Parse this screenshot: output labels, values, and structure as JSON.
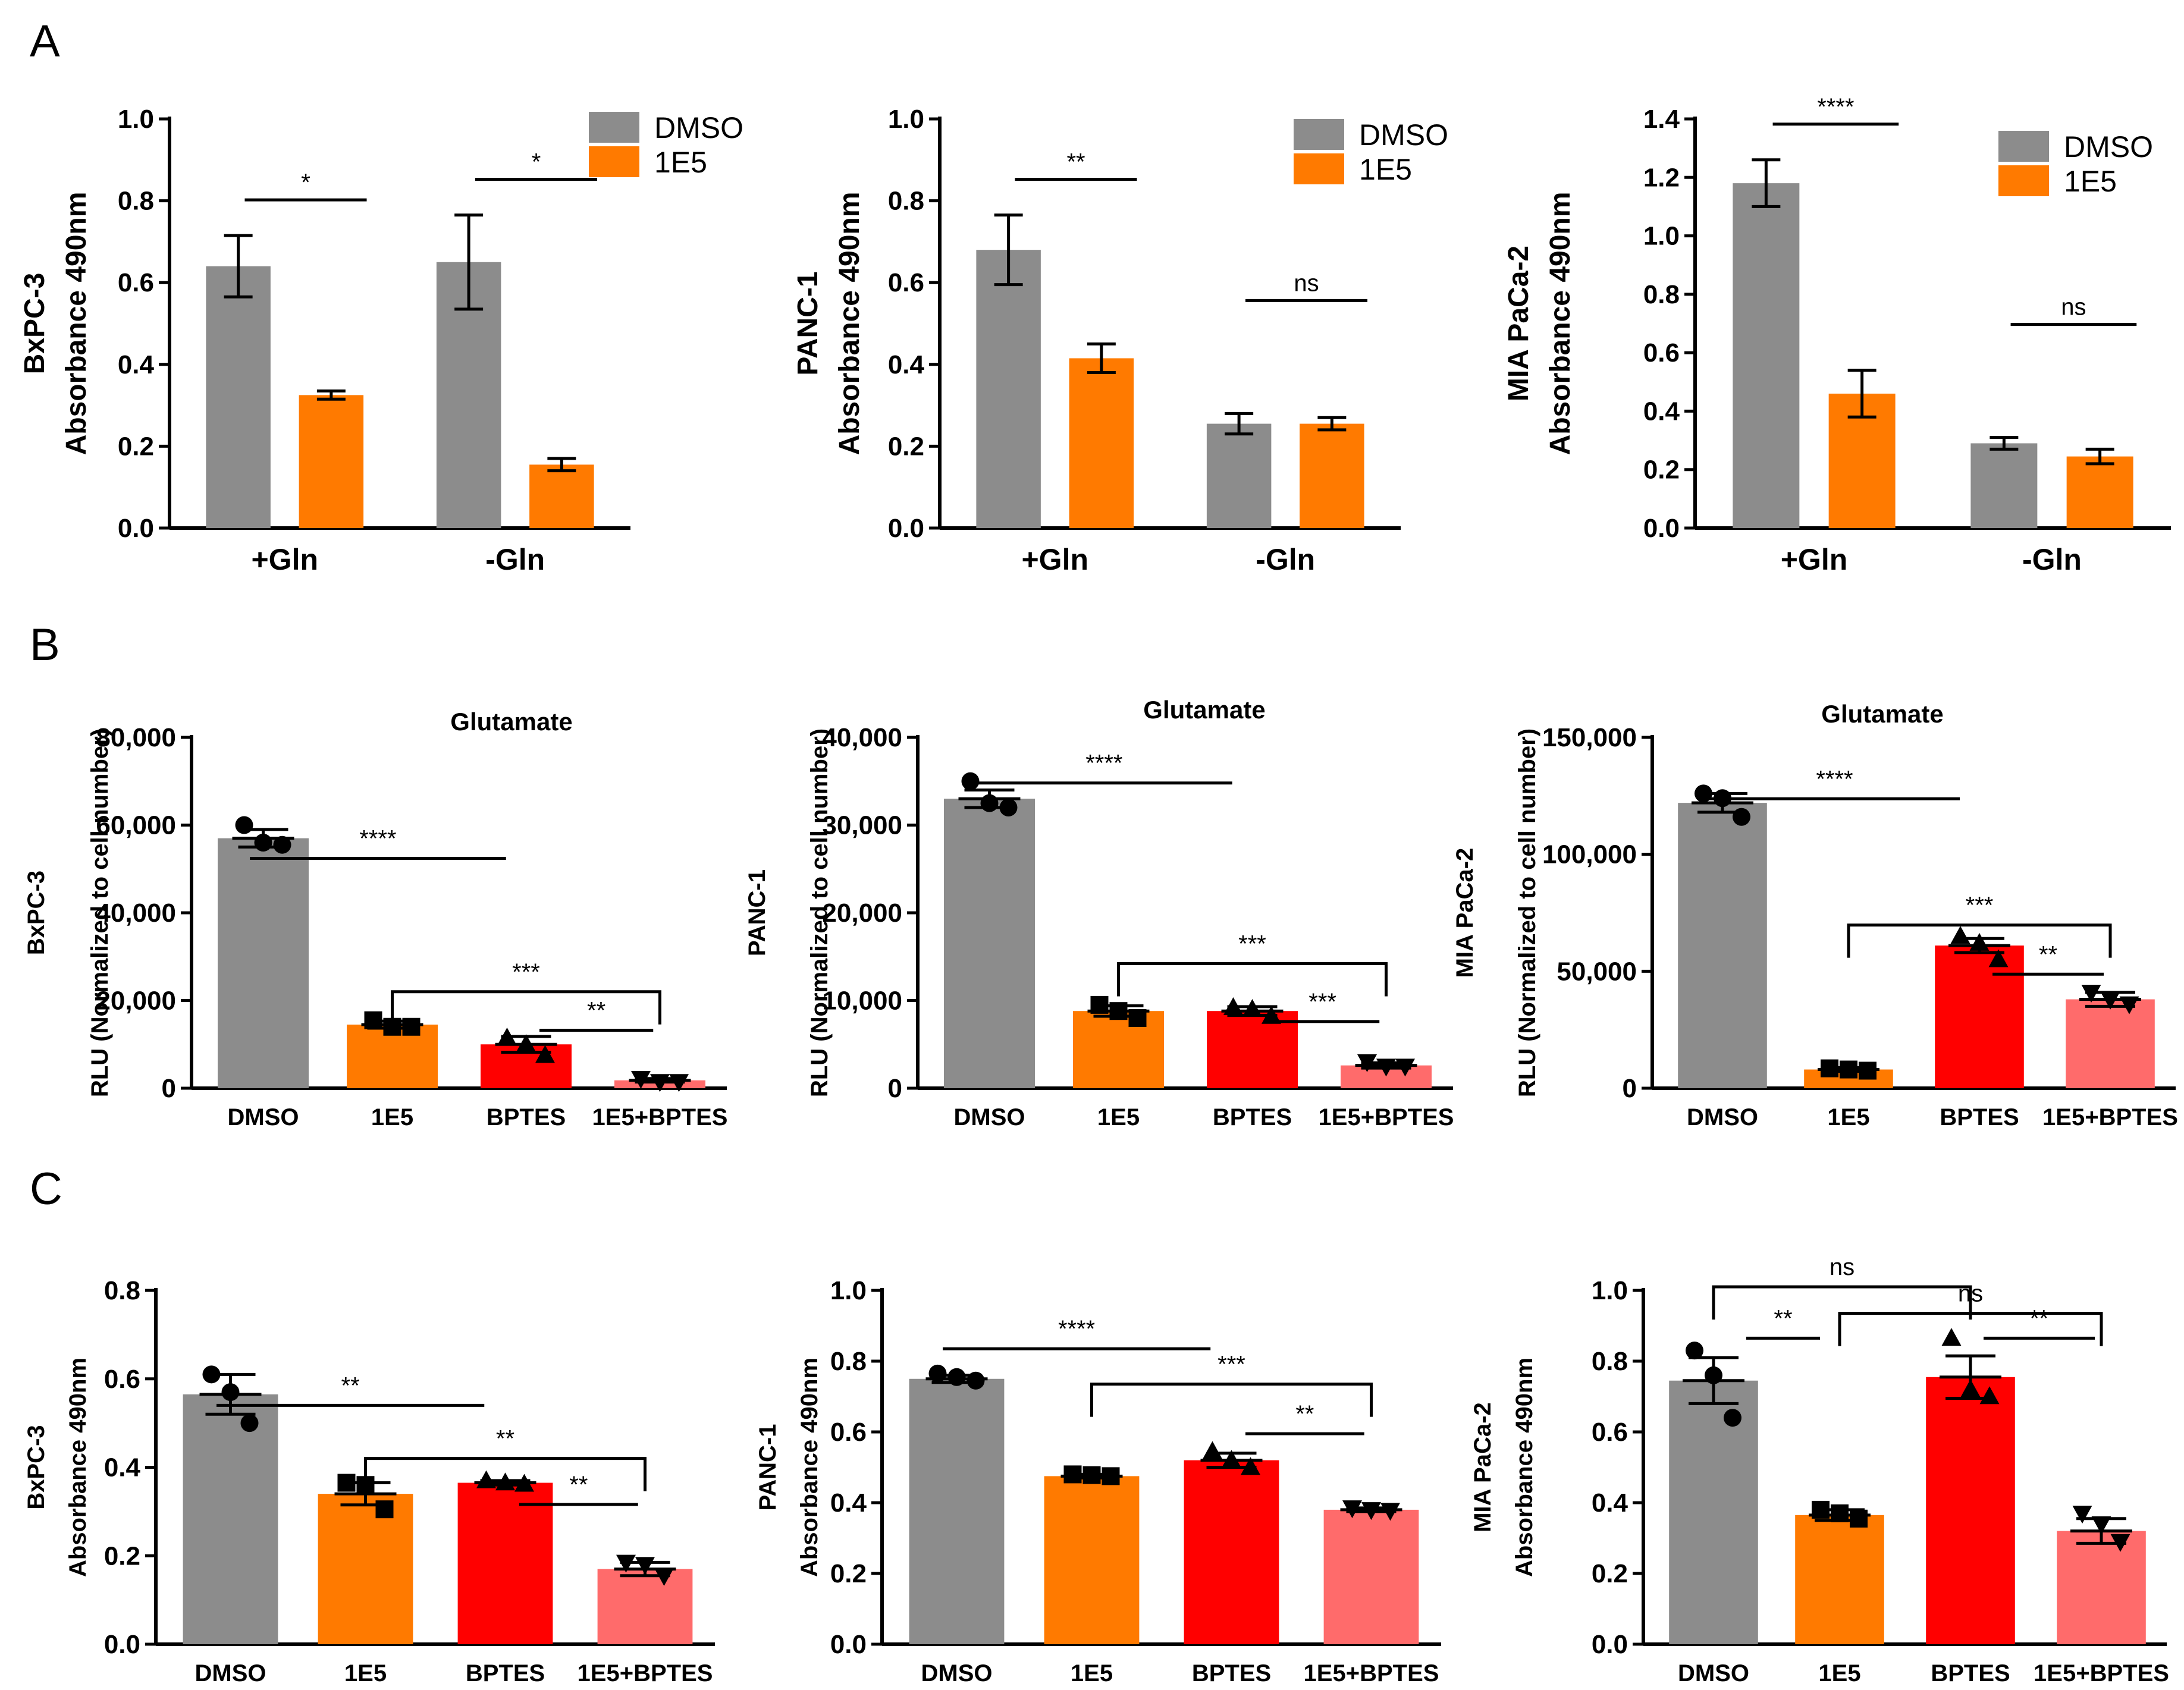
{
  "panel_labels": [
    "A",
    "B",
    "C"
  ],
  "colors": {
    "dmso": "#8c8c8c",
    "e15": "#ff7a00",
    "bptes": "#ff0000",
    "combo": "#ff6b6b",
    "axis": "#000000"
  },
  "chart_data": [
    {
      "id": "A1",
      "panel": "A",
      "type": "bar",
      "categories": [
        "+Gln",
        "-Gln"
      ],
      "series": [
        {
          "name": "DMSO",
          "values": [
            0.64,
            0.65
          ],
          "errors": [
            0.075,
            0.115
          ]
        },
        {
          "name": "1E5",
          "values": [
            0.325,
            0.155
          ],
          "errors": [
            0.01,
            0.015
          ]
        }
      ],
      "ylabel_lines": [
        "BxPC-3",
        "Absorbance 490nm"
      ],
      "ylim": [
        0,
        1.0
      ],
      "ytick_labels": [
        "0.0",
        "0.2",
        "0.4",
        "0.6",
        "0.8",
        "1.0"
      ],
      "legend": [
        "DMSO",
        "1E5"
      ],
      "annotations": [
        {
          "text": "*",
          "group": 0
        },
        {
          "text": "*",
          "group": 1
        }
      ]
    },
    {
      "id": "A2",
      "panel": "A",
      "type": "bar",
      "categories": [
        "+Gln",
        "-Gln"
      ],
      "series": [
        {
          "name": "DMSO",
          "values": [
            0.68,
            0.255
          ],
          "errors": [
            0.085,
            0.025
          ]
        },
        {
          "name": "1E5",
          "values": [
            0.415,
            0.255
          ],
          "errors": [
            0.035,
            0.015
          ]
        }
      ],
      "ylabel_lines": [
        "PANC-1",
        "Absorbance 490nm"
      ],
      "ylim": [
        0,
        1.0
      ],
      "ytick_labels": [
        "0.0",
        "0.2",
        "0.4",
        "0.6",
        "0.8",
        "1.0"
      ],
      "legend": [
        "DMSO",
        "1E5"
      ],
      "annotations": [
        {
          "text": "**",
          "group": 0
        },
        {
          "text": "ns",
          "group": 1
        }
      ]
    },
    {
      "id": "A3",
      "panel": "A",
      "type": "bar",
      "categories": [
        "+Gln",
        "-Gln"
      ],
      "series": [
        {
          "name": "DMSO",
          "values": [
            1.18,
            0.29
          ],
          "errors": [
            0.08,
            0.02
          ]
        },
        {
          "name": "1E5",
          "values": [
            0.46,
            0.245
          ],
          "errors": [
            0.08,
            0.025
          ]
        }
      ],
      "ylabel_lines": [
        "MIA PaCa-2",
        "Absorbance 490nm"
      ],
      "ylim": [
        0,
        1.4
      ],
      "ytick_labels": [
        "0.0",
        "0.2",
        "0.4",
        "0.6",
        "0.8",
        "1.0",
        "1.2",
        "1.4"
      ],
      "legend": [
        "DMSO",
        "1E5"
      ],
      "annotations": [
        {
          "text": "****",
          "group": 0
        },
        {
          "text": "ns",
          "group": 1
        }
      ]
    },
    {
      "id": "B1",
      "panel": "B",
      "type": "bar",
      "title": "Glutamate",
      "categories": [
        "DMSO",
        "1E5",
        "BPTES",
        "1E5+BPTES"
      ],
      "values": [
        57000,
        14500,
        10000,
        1800
      ],
      "errors": [
        2000,
        800,
        1800,
        400
      ],
      "points": [
        [
          60000,
          56000,
          55500
        ],
        [
          15500,
          14000,
          14000
        ],
        [
          11500,
          10000,
          7500
        ],
        [
          2200,
          1500,
          1500
        ]
      ],
      "ylabel_lines": [
        "BxPC-3",
        "RLU (Normalized to cell number)"
      ],
      "ylim": [
        0,
        80000
      ],
      "ytick_labels": [
        "0",
        "20,000",
        "40,000",
        "60,000",
        "80,000"
      ],
      "comparisons": [
        {
          "from": 0,
          "to": 2,
          "text": "****",
          "level": 0.655
        },
        {
          "from": 1,
          "to": 3,
          "text": "***",
          "level": 0.275,
          "bracket": true
        },
        {
          "from": 2,
          "to": 3,
          "text": "**",
          "level": 0.165
        }
      ]
    },
    {
      "id": "B2",
      "panel": "B",
      "type": "bar",
      "title": "Glutamate",
      "categories": [
        "DMSO",
        "1E5",
        "BPTES",
        "1E5+BPTES"
      ],
      "values": [
        33000,
        8800,
        8800,
        2600
      ],
      "errors": [
        1000,
        600,
        500,
        300
      ],
      "points": [
        [
          35000,
          32500,
          32000
        ],
        [
          9500,
          8800,
          8000
        ],
        [
          9200,
          9000,
          8200
        ],
        [
          3000,
          2500,
          2500
        ]
      ],
      "ylabel_lines": [
        "PANC-1",
        "RLU (Normalized to cell number)"
      ],
      "ylim": [
        0,
        40000
      ],
      "ytick_labels": [
        "0",
        "10,000",
        "20,000",
        "30,000",
        "40,000"
      ],
      "comparisons": [
        {
          "from": 0,
          "to": 2,
          "text": "****",
          "level": 0.87
        },
        {
          "from": 1,
          "to": 3,
          "text": "***",
          "level": 0.355,
          "bracket": true
        },
        {
          "from": 2,
          "to": 3,
          "text": "***",
          "level": 0.19
        }
      ]
    },
    {
      "id": "B3",
      "panel": "B",
      "type": "bar",
      "title": "Glutamate",
      "categories": [
        "DMSO",
        "1E5",
        "BPTES",
        "1E5+BPTES"
      ],
      "values": [
        122000,
        8000,
        61000,
        38000
      ],
      "errors": [
        4000,
        800,
        3000,
        3000
      ],
      "points": [
        [
          126000,
          124000,
          116000
        ],
        [
          8500,
          8000,
          7500
        ],
        [
          65000,
          62000,
          55000
        ],
        [
          41000,
          38000,
          36000
        ]
      ],
      "ylabel_lines": [
        "MIA PaCa-2",
        "RLU (Normalized to cell number)"
      ],
      "ylim": [
        0,
        150000
      ],
      "ytick_labels": [
        "0",
        "50,000",
        "100,000",
        "150,000"
      ],
      "comparisons": [
        {
          "from": 0,
          "to": 2,
          "text": "****",
          "level": 0.825
        },
        {
          "from": 1,
          "to": 3,
          "text": "***",
          "level": 0.465,
          "bracket": true
        },
        {
          "from": 2,
          "to": 3,
          "text": "**",
          "level": 0.325
        }
      ]
    },
    {
      "id": "C1",
      "panel": "C",
      "type": "bar",
      "categories": [
        "DMSO",
        "1E5",
        "BPTES",
        "1E5+BPTES"
      ],
      "values": [
        0.565,
        0.34,
        0.365,
        0.17
      ],
      "errors": [
        0.045,
        0.025,
        0.005,
        0.015
      ],
      "points": [
        [
          0.61,
          0.57,
          0.5
        ],
        [
          0.365,
          0.36,
          0.305
        ],
        [
          0.37,
          0.365,
          0.362
        ],
        [
          0.185,
          0.18,
          0.155
        ]
      ],
      "ylabel_lines": [
        "BxPC-3",
        "Absorbance 490nm"
      ],
      "ylim": [
        0,
        0.8
      ],
      "ytick_labels": [
        "0.0",
        "0.2",
        "0.4",
        "0.6",
        "0.8"
      ],
      "comparisons": [
        {
          "from": 0,
          "to": 2,
          "text": "**",
          "level": 0.675
        },
        {
          "from": 1,
          "to": 3,
          "text": "**",
          "level": 0.525,
          "bracket": true
        },
        {
          "from": 2,
          "to": 3,
          "text": "**",
          "level": 0.395
        }
      ]
    },
    {
      "id": "C2",
      "panel": "C",
      "type": "bar",
      "categories": [
        "DMSO",
        "1E5",
        "BPTES",
        "1E5+BPTES"
      ],
      "values": [
        0.75,
        0.475,
        0.52,
        0.38
      ],
      "errors": [
        0.01,
        0.005,
        0.02,
        0.005
      ],
      "points": [
        [
          0.765,
          0.755,
          0.745
        ],
        [
          0.48,
          0.478,
          0.475
        ],
        [
          0.545,
          0.52,
          0.5
        ],
        [
          0.385,
          0.38,
          0.378
        ]
      ],
      "ylabel_lines": [
        "PANC-1",
        "Absorbance 490nm"
      ],
      "ylim": [
        0,
        1.0
      ],
      "ytick_labels": [
        "0.0",
        "0.2",
        "0.4",
        "0.6",
        "0.8",
        "1.0"
      ],
      "comparisons": [
        {
          "from": 0,
          "to": 2,
          "text": "****",
          "level": 0.835
        },
        {
          "from": 1,
          "to": 3,
          "text": "***",
          "level": 0.735,
          "bracket": true
        },
        {
          "from": 2,
          "to": 3,
          "text": "**",
          "level": 0.595
        }
      ]
    },
    {
      "id": "C3",
      "panel": "C",
      "type": "bar",
      "categories": [
        "DMSO",
        "1E5",
        "BPTES",
        "1E5+BPTES"
      ],
      "values": [
        0.745,
        0.365,
        0.755,
        0.32
      ],
      "errors": [
        0.065,
        0.015,
        0.06,
        0.035
      ],
      "points": [
        [
          0.83,
          0.76,
          0.64
        ],
        [
          0.38,
          0.37,
          0.355
        ],
        [
          0.865,
          0.72,
          0.7
        ],
        [
          0.37,
          0.34,
          0.29
        ]
      ],
      "ylabel_lines": [
        "MIA PaCa-2",
        "Absorbance 490nm"
      ],
      "ylim": [
        0,
        1.0
      ],
      "ytick_labels": [
        "0.0",
        "0.2",
        "0.4",
        "0.6",
        "0.8",
        "1.0"
      ],
      "comparisons": [
        {
          "from": 0,
          "to": 2,
          "text": "ns",
          "level": 1.01,
          "bracket": true
        },
        {
          "from": 0,
          "to": 1,
          "text": "**",
          "level": 0.865
        },
        {
          "from": 1,
          "to": 3,
          "text": "ns",
          "level": 0.935,
          "bracket": true
        },
        {
          "from": 2,
          "to": 3,
          "text": "**",
          "level": 0.865
        }
      ]
    }
  ]
}
